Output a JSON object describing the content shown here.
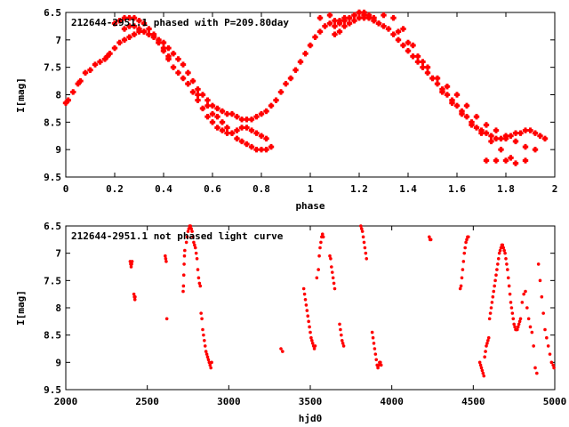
{
  "chart_data": [
    {
      "type": "scatter",
      "title": "212644-2951.1 phased with P=209.80day",
      "xlabel": "phase",
      "ylabel": "I[mag]",
      "xlim": [
        0,
        2
      ],
      "ylim": [
        9.5,
        6.5
      ],
      "y_inverted": true,
      "x_ticks": [
        "0",
        "0.2",
        "0.4",
        "0.6",
        "0.8",
        "1",
        "1.2",
        "1.4",
        "1.6",
        "1.8",
        "2"
      ],
      "y_ticks": [
        "6.5",
        "7",
        "7.5",
        "8",
        "8.5",
        "9",
        "9.5"
      ],
      "grid": false,
      "marker_color": "#ff0000",
      "series": [
        {
          "x": [
            0.0,
            0.01,
            0.03,
            0.05,
            0.06,
            0.08,
            0.1,
            0.12,
            0.14,
            0.16,
            0.17,
            0.18,
            0.2,
            0.22,
            0.24,
            0.26,
            0.28,
            0.3,
            0.32,
            0.34,
            0.36,
            0.38,
            0.4,
            0.42,
            0.44,
            0.46,
            0.48,
            0.5,
            0.52,
            0.54,
            0.56,
            0.58,
            0.6,
            0.62,
            0.64,
            0.66,
            0.68,
            0.7,
            0.72,
            0.74,
            0.76,
            0.78,
            0.8,
            0.82,
            0.84,
            0.86,
            0.88,
            0.9,
            0.92,
            0.94,
            0.96,
            0.98,
            1.0,
            1.02,
            1.04,
            1.06,
            1.08,
            1.1,
            1.12,
            1.14,
            1.16,
            1.18,
            1.2,
            1.22,
            1.24,
            1.26,
            1.28,
            1.3,
            1.32,
            1.34,
            1.36,
            1.38,
            1.4,
            1.42,
            1.44,
            1.46,
            1.48,
            1.5,
            1.52,
            1.54,
            1.56,
            1.58,
            1.6,
            1.62,
            1.64,
            1.66,
            1.68,
            1.7,
            1.72,
            1.74,
            1.76,
            1.78,
            1.8,
            1.82,
            1.84,
            1.86,
            1.88,
            1.9,
            1.92,
            1.94,
            1.96,
            0.2,
            0.22,
            0.24,
            0.26,
            0.28,
            0.3,
            0.32,
            0.34,
            0.36,
            0.38,
            0.4,
            0.42,
            0.44,
            0.46,
            0.48,
            0.5,
            0.52,
            0.54,
            0.56,
            0.58,
            0.6,
            0.62,
            0.64,
            0.66,
            0.68,
            0.7,
            0.72,
            0.74,
            0.76,
            0.78,
            0.8,
            0.82,
            1.1,
            1.12,
            1.14,
            1.16,
            1.18,
            1.2,
            1.22,
            1.24,
            1.26,
            1.28,
            1.36,
            1.4,
            1.44,
            1.48,
            1.52,
            1.56,
            1.6,
            1.64,
            1.68,
            1.72,
            1.76,
            1.8,
            1.84,
            1.88,
            1.92,
            0.24,
            0.26,
            0.28,
            0.3,
            0.32,
            0.34,
            0.36,
            0.38,
            0.4,
            0.42,
            0.62,
            0.64,
            0.66,
            0.68,
            0.7,
            0.72,
            0.74,
            0.76,
            0.78,
            0.8,
            0.82,
            0.84,
            1.1,
            1.12,
            1.14,
            1.16,
            1.18,
            1.2,
            1.22,
            1.24,
            1.3,
            1.34,
            1.38,
            1.42,
            1.46,
            1.5,
            1.54,
            1.58,
            1.62,
            1.66,
            1.7,
            1.74,
            1.78,
            1.82,
            0.5,
            0.54,
            0.58,
            0.6,
            1.04,
            1.08,
            1.72,
            1.76,
            1.8,
            1.84,
            1.88
          ],
          "y": [
            8.15,
            8.1,
            7.95,
            7.8,
            7.75,
            7.6,
            7.55,
            7.45,
            7.4,
            7.35,
            7.3,
            7.25,
            7.15,
            7.05,
            7.0,
            6.95,
            6.9,
            6.85,
            6.85,
            6.9,
            6.95,
            7.0,
            7.05,
            7.15,
            7.25,
            7.35,
            7.45,
            7.6,
            7.75,
            7.9,
            8.0,
            8.1,
            8.2,
            8.25,
            8.3,
            8.35,
            8.35,
            8.4,
            8.45,
            8.45,
            8.45,
            8.4,
            8.35,
            8.3,
            8.2,
            8.1,
            7.95,
            7.8,
            7.7,
            7.55,
            7.4,
            7.25,
            7.1,
            6.95,
            6.85,
            6.75,
            6.7,
            6.65,
            6.65,
            6.6,
            6.6,
            6.55,
            6.5,
            6.55,
            6.6,
            6.65,
            6.7,
            6.75,
            6.8,
            6.9,
            7.0,
            7.1,
            7.2,
            7.3,
            7.4,
            7.5,
            7.6,
            7.7,
            7.8,
            7.9,
            8.0,
            8.1,
            8.2,
            8.3,
            8.4,
            8.5,
            8.6,
            8.65,
            8.7,
            8.75,
            8.8,
            8.8,
            8.8,
            8.75,
            8.7,
            8.7,
            8.65,
            8.65,
            8.7,
            8.75,
            8.8,
            6.7,
            6.65,
            6.6,
            6.6,
            6.6,
            6.65,
            6.7,
            6.8,
            6.9,
            7.05,
            7.2,
            7.35,
            7.5,
            7.6,
            7.7,
            7.8,
            7.95,
            8.1,
            8.25,
            8.4,
            8.5,
            8.6,
            8.65,
            8.7,
            8.7,
            8.65,
            8.6,
            8.6,
            8.65,
            8.7,
            8.75,
            8.8,
            6.75,
            6.7,
            6.65,
            6.6,
            6.55,
            6.5,
            6.5,
            6.55,
            6.6,
            6.7,
            6.85,
            7.05,
            7.3,
            7.5,
            7.7,
            7.85,
            8.0,
            8.2,
            8.4,
            8.55,
            8.65,
            8.75,
            8.85,
            8.95,
            9.0,
            6.8,
            6.75,
            6.75,
            6.8,
            6.85,
            6.9,
            6.95,
            7.05,
            7.15,
            7.3,
            8.4,
            8.5,
            8.6,
            8.7,
            8.8,
            8.85,
            8.9,
            8.95,
            9.0,
            9.0,
            9.0,
            8.95,
            6.9,
            6.85,
            6.75,
            6.7,
            6.65,
            6.6,
            6.6,
            6.6,
            6.55,
            6.6,
            6.8,
            7.1,
            7.4,
            7.7,
            7.95,
            8.15,
            8.35,
            8.55,
            8.7,
            8.85,
            9.0,
            9.15,
            7.8,
            8.0,
            8.2,
            8.35,
            6.6,
            6.55,
            9.2,
            9.2,
            9.2,
            9.25,
            9.2
          ]
        }
      ]
    },
    {
      "type": "scatter",
      "title": "212644-2951.1 not phased light curve",
      "xlabel": "hjd0",
      "ylabel": "I[mag]",
      "xlim": [
        2000,
        5000
      ],
      "ylim": [
        9.5,
        6.5
      ],
      "y_inverted": true,
      "x_ticks": [
        "2000",
        "2500",
        "3000",
        "3500",
        "4000",
        "4500",
        "5000"
      ],
      "y_ticks": [
        "6.5",
        "7",
        "7.5",
        "8",
        "8.5",
        "9",
        "9.5"
      ],
      "grid": false,
      "marker_color": "#ff0000",
      "series": [
        {
          "x": [
            2395,
            2398,
            2401,
            2404,
            2407,
            2418,
            2421,
            2424,
            2425,
            2610,
            2613,
            2616,
            2620,
            2720,
            2722,
            2724,
            2726,
            2728,
            2730,
            2740,
            2745,
            2750,
            2755,
            2760,
            2765,
            2770,
            2775,
            2780,
            2785,
            2790,
            2795,
            2800,
            2805,
            2810,
            2815,
            2820,
            2825,
            2830,
            2835,
            2840,
            2845,
            2850,
            2855,
            2860,
            2865,
            2870,
            2875,
            2880,
            2885,
            2890,
            2895,
            3320,
            3330,
            3460,
            3465,
            3470,
            3475,
            3480,
            3485,
            3490,
            3495,
            3500,
            3505,
            3510,
            3515,
            3520,
            3525,
            3530,
            3540,
            3550,
            3555,
            3560,
            3565,
            3570,
            3575,
            3580,
            3620,
            3625,
            3630,
            3635,
            3640,
            3645,
            3650,
            3680,
            3685,
            3690,
            3695,
            3700,
            3705,
            3810,
            3815,
            3820,
            3825,
            3830,
            3835,
            3840,
            3845,
            3880,
            3885,
            3890,
            3895,
            3900,
            3905,
            3910,
            3915,
            3920,
            3925,
            3930,
            3935,
            4230,
            4235,
            4240,
            4420,
            4425,
            4430,
            4435,
            4440,
            4445,
            4450,
            4455,
            4460,
            4465,
            4470,
            4540,
            4545,
            4550,
            4555,
            4560,
            4565,
            4570,
            4575,
            4580,
            4585,
            4590,
            4595,
            4600,
            4605,
            4610,
            4615,
            4620,
            4625,
            4630,
            4635,
            4640,
            4645,
            4650,
            4655,
            4660,
            4665,
            4670,
            4675,
            4680,
            4685,
            4690,
            4695,
            4700,
            4705,
            4710,
            4715,
            4720,
            4725,
            4730,
            4735,
            4740,
            4745,
            4750,
            4755,
            4760,
            4765,
            4770,
            4775,
            4780,
            4785,
            4790,
            4800,
            4810,
            4820,
            4830,
            4840,
            4850,
            4860,
            4870,
            4880,
            4890,
            4900,
            4910,
            4920,
            4930,
            4940,
            4950,
            4960,
            4970,
            4980,
            4990,
            4995
          ],
          "y": [
            7.15,
            7.2,
            7.25,
            7.2,
            7.15,
            7.75,
            7.8,
            7.85,
            7.8,
            7.05,
            7.1,
            7.15,
            8.2,
            7.7,
            7.6,
            7.4,
            7.2,
            7.05,
            6.95,
            6.8,
            6.7,
            6.6,
            6.55,
            6.5,
            6.5,
            6.55,
            6.6,
            6.7,
            6.8,
            6.85,
            6.9,
            7.0,
            7.1,
            7.3,
            7.45,
            7.55,
            7.6,
            8.1,
            8.2,
            8.4,
            8.5,
            8.6,
            8.7,
            8.8,
            8.85,
            8.9,
            8.95,
            9.0,
            9.05,
            9.1,
            9.0,
            8.75,
            8.8,
            7.65,
            7.75,
            7.85,
            7.95,
            8.05,
            8.15,
            8.25,
            8.35,
            8.45,
            8.55,
            8.6,
            8.65,
            8.7,
            8.75,
            8.7,
            7.45,
            7.3,
            7.05,
            6.9,
            6.8,
            6.7,
            6.65,
            6.7,
            7.05,
            7.1,
            7.25,
            7.35,
            7.45,
            7.55,
            7.65,
            8.3,
            8.4,
            8.5,
            8.6,
            8.65,
            8.7,
            6.5,
            6.55,
            6.6,
            6.7,
            6.8,
            6.9,
            7.0,
            7.1,
            8.45,
            8.55,
            8.65,
            8.75,
            8.85,
            8.95,
            9.05,
            9.1,
            9.05,
            9.0,
            9.0,
            9.05,
            6.7,
            6.75,
            6.75,
            7.65,
            7.6,
            7.45,
            7.3,
            7.15,
            7.0,
            6.9,
            6.8,
            6.75,
            6.7,
            6.7,
            9.0,
            9.05,
            9.1,
            9.15,
            9.2,
            9.25,
            8.9,
            8.8,
            8.7,
            8.65,
            8.6,
            8.55,
            8.2,
            8.1,
            8.0,
            7.9,
            7.8,
            7.7,
            7.6,
            7.5,
            7.4,
            7.3,
            7.2,
            7.1,
            7.0,
            6.95,
            6.9,
            6.85,
            6.85,
            6.9,
            6.95,
            7.0,
            7.1,
            7.2,
            7.3,
            7.45,
            7.6,
            7.75,
            7.9,
            8.0,
            8.1,
            8.2,
            8.3,
            8.35,
            8.4,
            8.4,
            8.4,
            8.35,
            8.3,
            8.25,
            8.2,
            7.9,
            7.75,
            7.7,
            8.0,
            8.2,
            8.35,
            8.45,
            8.7,
            9.1,
            9.2,
            7.2,
            7.5,
            7.8,
            8.1,
            8.4,
            8.55,
            8.7,
            8.85,
            9.0,
            9.05,
            9.1
          ]
        }
      ]
    }
  ]
}
